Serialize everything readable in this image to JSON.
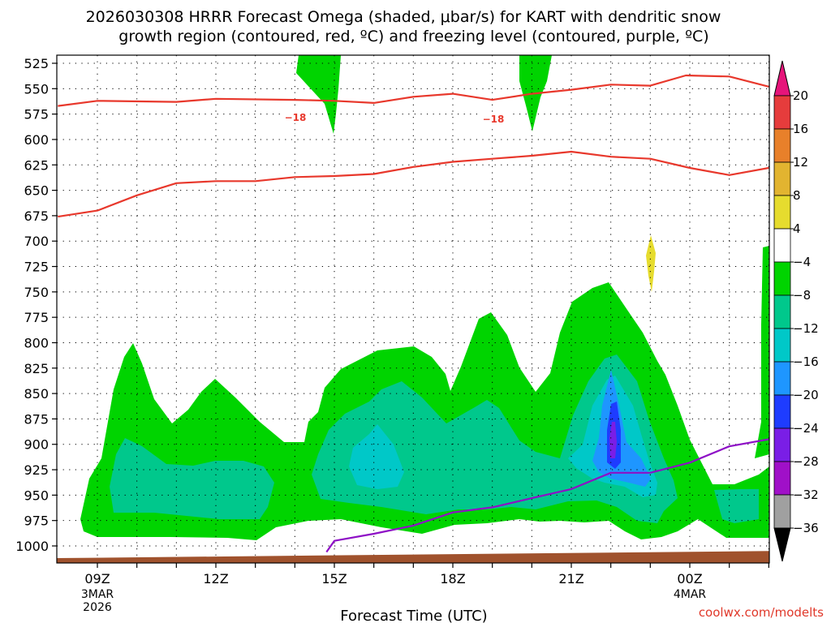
{
  "chart_data": {
    "type": "time-height cross-section (shaded + contours)",
    "title": [
      "2026030308 HRRR Forecast Omega (shaded, μbar/s) for KART with dendritic snow",
      "growth region (contoured, red, ºC) and freezing level (contoured, purple, ºC)"
    ],
    "xlabel": "Forecast Time (UTC)",
    "ylabel": "",
    "credit": "coolwx.com/modelts",
    "x_range_hours": [
      8,
      26
    ],
    "y_range_hpa": [
      515,
      1015
    ],
    "x_ticks": [
      {
        "hour": 9,
        "label": "09Z"
      },
      {
        "hour": 12,
        "label": "12Z"
      },
      {
        "hour": 15,
        "label": "15Z"
      },
      {
        "hour": 18,
        "label": "18Z"
      },
      {
        "hour": 21,
        "label": "21Z"
      },
      {
        "hour": 24,
        "label": "00Z"
      }
    ],
    "date_labels": [
      {
        "hour": 9,
        "lines": [
          "3MAR",
          "2026"
        ]
      },
      {
        "hour": 24,
        "lines": [
          "4MAR"
        ]
      }
    ],
    "y_ticks": [
      525,
      550,
      575,
      600,
      625,
      650,
      675,
      700,
      725,
      750,
      775,
      800,
      825,
      850,
      875,
      900,
      925,
      950,
      975,
      1000
    ],
    "grid": true,
    "colorbar": {
      "labels": [
        "20",
        "16",
        "12",
        "8",
        "4",
        "−4",
        "−8",
        "−12",
        "−16",
        "−20",
        "−24",
        "−28",
        "−32",
        "−36"
      ],
      "colors": [
        "#e63c3c",
        "#e8802a",
        "#e2b430",
        "#e6dc2e",
        "#ffffff",
        "#00d400",
        "#00c88c",
        "#00c8c8",
        "#1e96ff",
        "#1e3cff",
        "#7a1ee6",
        "#a010c8",
        "#a0a0a0"
      ],
      "top_cap": "#e6147a",
      "bottom_cap": "#000000"
    },
    "series": [
      {
        "name": "-18 ºC isotherm (upper)",
        "color": "#e8382c",
        "label": "−18",
        "points": [
          [
            8,
            567
          ],
          [
            9,
            562
          ],
          [
            11,
            563
          ],
          [
            12,
            560
          ],
          [
            14,
            561
          ],
          [
            15,
            562
          ],
          [
            16,
            564
          ],
          [
            17,
            558
          ],
          [
            18,
            555
          ],
          [
            19,
            561
          ],
          [
            20,
            555
          ],
          [
            21,
            551
          ],
          [
            22,
            546
          ],
          [
            23,
            547
          ],
          [
            23.9,
            537
          ],
          [
            25,
            538
          ],
          [
            26,
            548
          ]
        ]
      },
      {
        "name": "-12 ºC isotherm (lower)",
        "color": "#e8382c",
        "points": [
          [
            8,
            676
          ],
          [
            9,
            670
          ],
          [
            10,
            655
          ],
          [
            11,
            643
          ],
          [
            12,
            641
          ],
          [
            13,
            641
          ],
          [
            14,
            637
          ],
          [
            15,
            636
          ],
          [
            16,
            634
          ],
          [
            17,
            627
          ],
          [
            18,
            622
          ],
          [
            19,
            619
          ],
          [
            20,
            616
          ],
          [
            21,
            612
          ],
          [
            22,
            617
          ],
          [
            23,
            619
          ],
          [
            24,
            628
          ],
          [
            25,
            635
          ],
          [
            26,
            628
          ]
        ]
      },
      {
        "name": "Freezing level",
        "color": "#8e10c6",
        "points": [
          [
            14.8,
            1006
          ],
          [
            15,
            995
          ],
          [
            16,
            988
          ],
          [
            17,
            980
          ],
          [
            18,
            967
          ],
          [
            19,
            962
          ],
          [
            20,
            953
          ],
          [
            21,
            944
          ],
          [
            22,
            928
          ],
          [
            23,
            928
          ],
          [
            24,
            918
          ],
          [
            25,
            902
          ],
          [
            26,
            895
          ]
        ]
      }
    ],
    "terrain": {
      "color": "#a0522d",
      "surface_hpa_start": 1012,
      "surface_hpa_end": 1005
    }
  }
}
